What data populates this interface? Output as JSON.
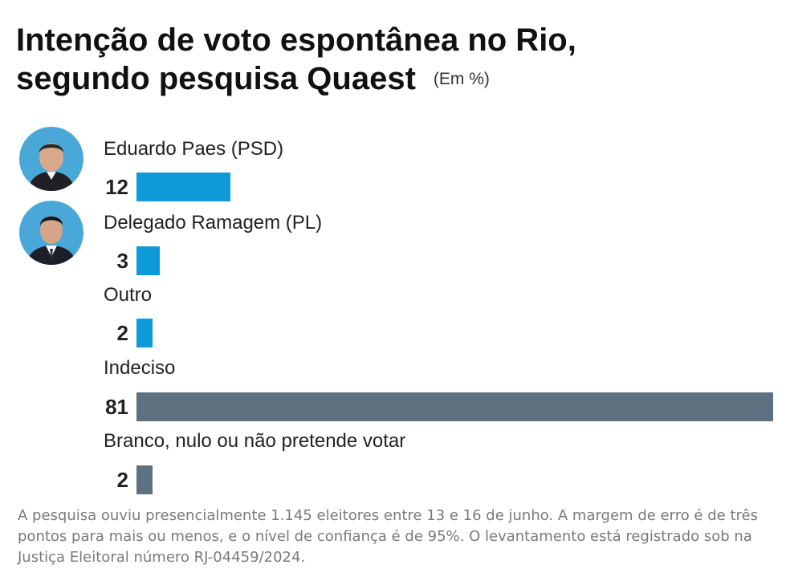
{
  "chart_data": {
    "type": "bar",
    "orientation": "horizontal",
    "title_line1": "Intenção de voto espontânea no Rio,",
    "title_line2": "segundo pesquisa Quaest",
    "unit": "(Em %)",
    "xlim": [
      0,
      81
    ],
    "categories": [
      "Eduardo Paes (PSD)",
      "Delegado Ramagem (PL)",
      "Outro",
      "Indeciso",
      "Branco, nulo ou não pretende votar"
    ],
    "values": [
      12,
      3,
      2,
      81,
      2
    ],
    "bar_colors": [
      "#0e9ad8",
      "#0e9ad8",
      "#0e9ad8",
      "#5d7180",
      "#5d7180"
    ],
    "avatars": [
      "eduardo-paes-photo",
      "delegado-ramagem-photo"
    ]
  },
  "footnote": "A pesquisa ouviu presencialmente 1.145 eleitores entre 13 e 16 de junho. A margem de erro é de três pontos para mais ou menos, e o nível de confiança é de 95%. O levantamento está registrado sob na Justiça Eleitoral número RJ-04459/2024."
}
